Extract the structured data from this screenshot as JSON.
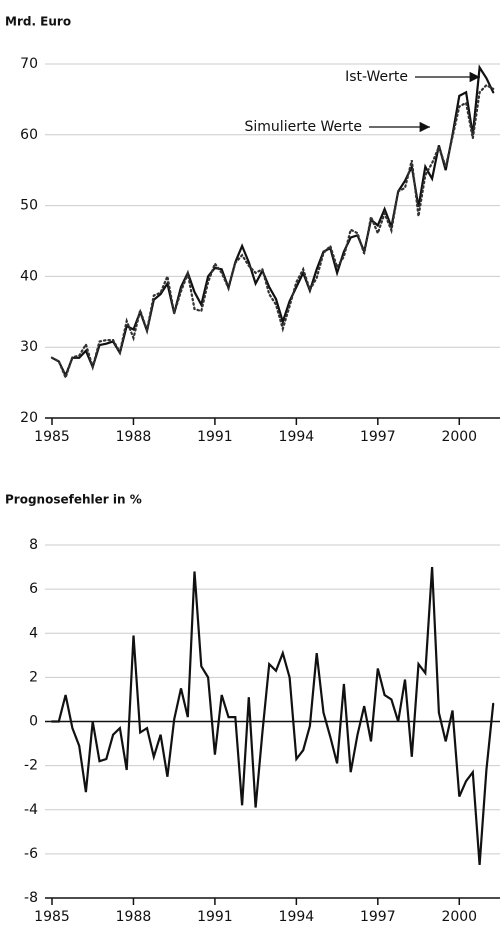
{
  "chart_data": [
    {
      "type": "line",
      "title": "Mrd. Euro",
      "x": [
        1985,
        1985.25,
        1985.5,
        1985.75,
        1986,
        1986.25,
        1986.5,
        1986.75,
        1987,
        1987.25,
        1987.5,
        1987.75,
        1988,
        1988.25,
        1988.5,
        1988.75,
        1989,
        1989.25,
        1989.5,
        1989.75,
        1990,
        1990.25,
        1990.5,
        1990.75,
        1991,
        1991.25,
        1991.5,
        1991.75,
        1992,
        1992.25,
        1992.5,
        1992.75,
        1993,
        1993.25,
        1993.5,
        1993.75,
        1994,
        1994.25,
        1994.5,
        1994.75,
        1995,
        1995.25,
        1995.5,
        1995.75,
        1996,
        1996.25,
        1996.5,
        1996.75,
        1997,
        1997.25,
        1997.5,
        1997.75,
        1998,
        1998.25,
        1998.5,
        1998.75,
        1999,
        1999.25,
        1999.5,
        1999.75,
        2000,
        2000.25,
        2000.5,
        2000.75,
        2001,
        2001.25
      ],
      "series": [
        {
          "name": "Ist-Werte",
          "color": "#111111",
          "dash": false,
          "values": [
            28.5,
            28,
            26,
            28.5,
            28.5,
            29.5,
            27.2,
            30.3,
            30.5,
            30.8,
            29.2,
            33,
            32.5,
            35,
            32.3,
            36.7,
            37.5,
            39,
            34.8,
            38.5,
            40.5,
            37.8,
            36,
            40,
            41.2,
            41,
            38.4,
            42,
            44.3,
            42,
            39,
            40.8,
            38.5,
            36.8,
            33.6,
            36.5,
            38.5,
            40.5,
            38,
            41,
            43.5,
            44,
            40.5,
            43.5,
            45.5,
            45.8,
            43.5,
            48,
            47.2,
            49.5,
            47,
            52,
            53.5,
            55.5,
            49.8,
            55.5,
            53.8,
            58.5,
            55,
            60,
            65.5,
            66,
            60,
            69.5,
            68,
            66
          ]
        },
        {
          "name": "Simulierte Werte",
          "color": "#333333",
          "dash": true,
          "values": [
            28.5,
            28,
            25.7,
            28.6,
            28.8,
            30.4,
            27.2,
            30.8,
            31,
            31,
            29.3,
            33.7,
            31.3,
            35.2,
            32.4,
            37.3,
            37.7,
            40,
            34.8,
            37.9,
            40.4,
            35.4,
            35.1,
            39.2,
            41.8,
            40.5,
            38.3,
            41.9,
            43,
            41.5,
            40.5,
            41,
            37.5,
            36,
            32.6,
            35.8,
            39.2,
            41,
            38.1,
            39.8,
            43.3,
            44.3,
            41.3,
            42.8,
            46.6,
            46.1,
            43.2,
            48.4,
            46.1,
            48.9,
            46.5,
            52,
            52.5,
            56.4,
            48.5,
            54.3,
            56,
            58.3,
            55.5,
            59.7,
            64,
            64.5,
            59.5,
            66,
            67,
            66.5
          ]
        }
      ],
      "xlim": [
        1985,
        2001.5
      ],
      "xticks": [
        1985,
        1988,
        1991,
        1994,
        1997,
        2000
      ],
      "ylim": [
        20,
        70
      ],
      "yticks": [
        20,
        30,
        40,
        50,
        60,
        70
      ],
      "grid": true
    },
    {
      "type": "line",
      "title": "Prognosefehler in %",
      "x": [
        1985,
        1985.25,
        1985.5,
        1985.75,
        1986,
        1986.25,
        1986.5,
        1986.75,
        1987,
        1987.25,
        1987.5,
        1987.75,
        1988,
        1988.25,
        1988.5,
        1988.75,
        1989,
        1989.25,
        1989.5,
        1989.75,
        1990,
        1990.25,
        1990.5,
        1990.75,
        1991,
        1991.25,
        1991.5,
        1991.75,
        1992,
        1992.25,
        1992.5,
        1992.75,
        1993,
        1993.25,
        1993.5,
        1993.75,
        1994,
        1994.25,
        1994.5,
        1994.75,
        1995,
        1995.25,
        1995.5,
        1995.75,
        1996,
        1996.25,
        1996.5,
        1996.75,
        1997,
        1997.25,
        1997.5,
        1997.75,
        1998,
        1998.25,
        1998.5,
        1998.75,
        1999,
        1999.25,
        1999.5,
        1999.75,
        2000,
        2000.25,
        2000.5,
        2000.75,
        2001,
        2001.25
      ],
      "series": [
        {
          "color": "#111111",
          "dash": false,
          "values": [
            0,
            0,
            1.2,
            -0.3,
            -1.1,
            -3.2,
            0,
            -1.8,
            -1.7,
            -0.6,
            -0.3,
            -2.2,
            3.9,
            -0.5,
            -0.3,
            -1.6,
            -0.6,
            -2.5,
            0.1,
            1.5,
            0.2,
            6.8,
            2.5,
            2.0,
            -1.5,
            1.2,
            0.2,
            0.2,
            -3.8,
            1.1,
            -3.9,
            -0.5,
            2.6,
            2.3,
            3.1,
            2.0,
            -1.7,
            -1.3,
            -0.2,
            3.1,
            0.4,
            -0.7,
            -1.9,
            1.7,
            -2.3,
            -0.6,
            0.7,
            -0.9,
            2.4,
            1.2,
            1.0,
            0.0,
            1.9,
            -1.6,
            2.6,
            2.2,
            7.0,
            0.4,
            -0.9,
            0.5,
            -3.4,
            -2.7,
            -2.3,
            -6.5,
            -2.2,
            0.8
          ]
        }
      ],
      "xlim": [
        1985,
        2001.5
      ],
      "xticks": [
        1985,
        1988,
        1991,
        1994,
        1997,
        2000
      ],
      "ylim": [
        -8,
        8
      ],
      "yticks": [
        -8,
        -6,
        -4,
        -2,
        0,
        2,
        4,
        6,
        8
      ],
      "grid": true
    }
  ]
}
